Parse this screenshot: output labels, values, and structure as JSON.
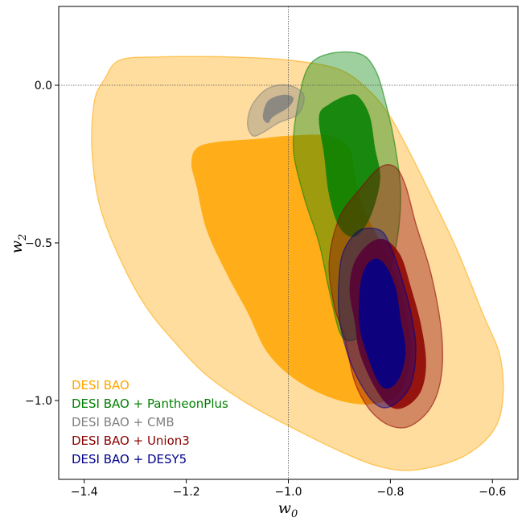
{
  "chart_data": {
    "type": "contour",
    "title": "",
    "xlabel": "w",
    "xlabel_sub": "0",
    "ylabel": "w",
    "ylabel_sub": "2",
    "xlim": [
      -1.45,
      -0.55
    ],
    "ylim": [
      -1.25,
      0.25
    ],
    "xticks": [
      -1.4,
      -1.2,
      -1.0,
      -0.8,
      -0.6
    ],
    "xtick_labels": [
      "−1.4",
      "−1.2",
      "−1.0",
      "−0.8",
      "−0.6"
    ],
    "yticks": [
      0.0,
      -0.5,
      -1.0
    ],
    "ytick_labels": [
      "0.0",
      "−0.5",
      "−1.0"
    ],
    "reference_lines": {
      "x": -1.0,
      "y": 0.0
    },
    "legend_position": "lower-left",
    "series": [
      {
        "name": "DESI BAO",
        "color": "#ffa500",
        "outer": [
          [
            -1.36,
            0.02
          ],
          [
            -1.33,
            0.08
          ],
          [
            -1.25,
            0.09
          ],
          [
            -1.12,
            0.09
          ],
          [
            -1.0,
            0.08
          ],
          [
            -0.9,
            0.05
          ],
          [
            -0.84,
            -0.02
          ],
          [
            -0.8,
            -0.1
          ],
          [
            -0.76,
            -0.22
          ],
          [
            -0.72,
            -0.35
          ],
          [
            -0.67,
            -0.52
          ],
          [
            -0.62,
            -0.72
          ],
          [
            -0.585,
            -0.86
          ],
          [
            -0.58,
            -1.0
          ],
          [
            -0.6,
            -1.1
          ],
          [
            -0.66,
            -1.18
          ],
          [
            -0.75,
            -1.22
          ],
          [
            -0.82,
            -1.21
          ],
          [
            -0.9,
            -1.16
          ],
          [
            -1.0,
            -1.08
          ],
          [
            -1.08,
            -1.01
          ],
          [
            -1.16,
            -0.92
          ],
          [
            -1.22,
            -0.82
          ],
          [
            -1.28,
            -0.7
          ],
          [
            -1.33,
            -0.55
          ],
          [
            -1.37,
            -0.38
          ],
          [
            -1.385,
            -0.2
          ],
          [
            -1.38,
            -0.05
          ]
        ],
        "inner": [
          [
            -1.18,
            -0.2
          ],
          [
            -1.14,
            -0.18
          ],
          [
            -1.06,
            -0.17
          ],
          [
            -1.0,
            -0.16
          ],
          [
            -0.92,
            -0.16
          ],
          [
            -0.88,
            -0.2
          ],
          [
            -0.87,
            -0.28
          ],
          [
            -0.85,
            -0.4
          ],
          [
            -0.8,
            -0.56
          ],
          [
            -0.77,
            -0.72
          ],
          [
            -0.76,
            -0.85
          ],
          [
            -0.78,
            -0.97
          ],
          [
            -0.83,
            -1.01
          ],
          [
            -0.9,
            -1.0
          ],
          [
            -0.98,
            -0.94
          ],
          [
            -1.04,
            -0.85
          ],
          [
            -1.08,
            -0.72
          ],
          [
            -1.12,
            -0.6
          ],
          [
            -1.16,
            -0.46
          ],
          [
            -1.18,
            -0.32
          ],
          [
            -1.19,
            -0.25
          ]
        ]
      },
      {
        "name": "DESI BAO + PantheonPlus",
        "color": "#008000",
        "outer": [
          [
            -0.98,
            -0.05
          ],
          [
            -0.96,
            0.06
          ],
          [
            -0.92,
            0.1
          ],
          [
            -0.86,
            0.1
          ],
          [
            -0.83,
            0.05
          ],
          [
            -0.81,
            -0.05
          ],
          [
            -0.79,
            -0.2
          ],
          [
            -0.78,
            -0.35
          ],
          [
            -0.79,
            -0.52
          ],
          [
            -0.82,
            -0.68
          ],
          [
            -0.85,
            -0.78
          ],
          [
            -0.88,
            -0.81
          ],
          [
            -0.9,
            -0.78
          ],
          [
            -0.92,
            -0.65
          ],
          [
            -0.94,
            -0.5
          ],
          [
            -0.97,
            -0.35
          ],
          [
            -0.99,
            -0.2
          ]
        ],
        "inner": [
          [
            -0.94,
            -0.1
          ],
          [
            -0.92,
            -0.06
          ],
          [
            -0.88,
            -0.03
          ],
          [
            -0.86,
            -0.04
          ],
          [
            -0.84,
            -0.1
          ],
          [
            -0.83,
            -0.2
          ],
          [
            -0.82,
            -0.3
          ],
          [
            -0.84,
            -0.42
          ],
          [
            -0.87,
            -0.48
          ],
          [
            -0.9,
            -0.45
          ],
          [
            -0.92,
            -0.35
          ],
          [
            -0.93,
            -0.22
          ]
        ]
      },
      {
        "name": "DESI BAO + CMB",
        "color": "#808080",
        "outer": [
          [
            -1.08,
            -0.12
          ],
          [
            -1.07,
            -0.06
          ],
          [
            -1.04,
            -0.01
          ],
          [
            -1.0,
            0.0
          ],
          [
            -0.97,
            -0.03
          ],
          [
            -0.98,
            -0.09
          ],
          [
            -1.02,
            -0.12
          ],
          [
            -1.05,
            -0.15
          ],
          [
            -1.07,
            -0.16
          ]
        ],
        "inner": [
          [
            -1.05,
            -0.1
          ],
          [
            -1.04,
            -0.05
          ],
          [
            -1.01,
            -0.03
          ],
          [
            -0.99,
            -0.04
          ],
          [
            -1.0,
            -0.07
          ],
          [
            -1.03,
            -0.1
          ],
          [
            -1.04,
            -0.12
          ]
        ]
      },
      {
        "name": "DESI BAO + Union3",
        "color": "#8b0000",
        "outer": [
          [
            -0.92,
            -0.56
          ],
          [
            -0.9,
            -0.42
          ],
          [
            -0.86,
            -0.33
          ],
          [
            -0.82,
            -0.26
          ],
          [
            -0.79,
            -0.26
          ],
          [
            -0.77,
            -0.32
          ],
          [
            -0.75,
            -0.44
          ],
          [
            -0.72,
            -0.6
          ],
          [
            -0.7,
            -0.78
          ],
          [
            -0.7,
            -0.92
          ],
          [
            -0.72,
            -1.02
          ],
          [
            -0.76,
            -1.08
          ],
          [
            -0.8,
            -1.08
          ],
          [
            -0.84,
            -1.03
          ],
          [
            -0.87,
            -0.94
          ],
          [
            -0.89,
            -0.8
          ],
          [
            -0.91,
            -0.7
          ]
        ],
        "inner": [
          [
            -0.88,
            -0.65
          ],
          [
            -0.87,
            -0.56
          ],
          [
            -0.84,
            -0.5
          ],
          [
            -0.81,
            -0.49
          ],
          [
            -0.78,
            -0.54
          ],
          [
            -0.76,
            -0.64
          ],
          [
            -0.74,
            -0.76
          ],
          [
            -0.73,
            -0.88
          ],
          [
            -0.74,
            -0.97
          ],
          [
            -0.77,
            -1.02
          ],
          [
            -0.8,
            -1.02
          ],
          [
            -0.83,
            -0.96
          ],
          [
            -0.86,
            -0.85
          ],
          [
            -0.87,
            -0.75
          ]
        ]
      },
      {
        "name": "DESI BAO + DESY5",
        "color": "#00008b",
        "outer": [
          [
            -0.9,
            -0.6
          ],
          [
            -0.89,
            -0.52
          ],
          [
            -0.86,
            -0.46
          ],
          [
            -0.82,
            -0.46
          ],
          [
            -0.8,
            -0.51
          ],
          [
            -0.78,
            -0.6
          ],
          [
            -0.76,
            -0.72
          ],
          [
            -0.75,
            -0.84
          ],
          [
            -0.76,
            -0.95
          ],
          [
            -0.79,
            -1.01
          ],
          [
            -0.82,
            -1.02
          ],
          [
            -0.85,
            -0.97
          ],
          [
            -0.88,
            -0.87
          ],
          [
            -0.9,
            -0.74
          ]
        ],
        "inner": [
          [
            -0.86,
            -0.65
          ],
          [
            -0.85,
            -0.58
          ],
          [
            -0.83,
            -0.55
          ],
          [
            -0.81,
            -0.57
          ],
          [
            -0.79,
            -0.64
          ],
          [
            -0.78,
            -0.74
          ],
          [
            -0.77,
            -0.84
          ],
          [
            -0.78,
            -0.92
          ],
          [
            -0.8,
            -0.96
          ],
          [
            -0.82,
            -0.95
          ],
          [
            -0.84,
            -0.88
          ],
          [
            -0.86,
            -0.77
          ]
        ]
      }
    ]
  }
}
